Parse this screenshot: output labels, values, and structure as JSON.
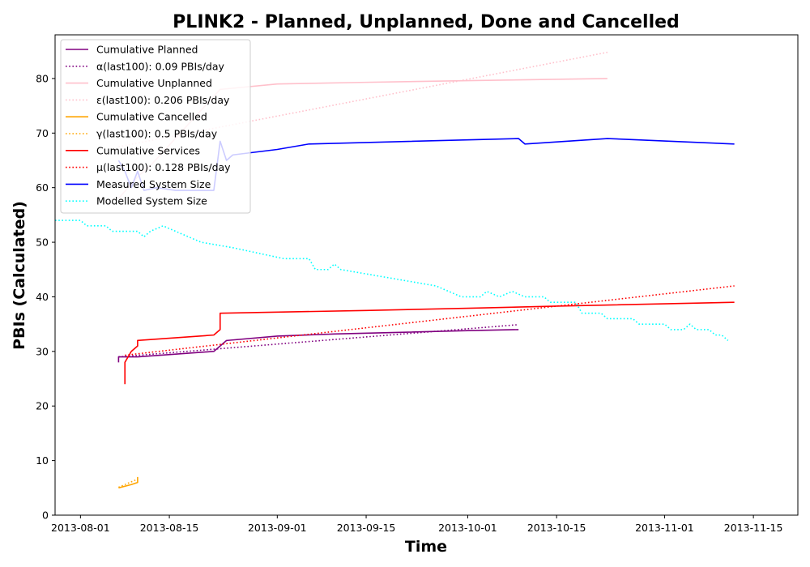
{
  "chart_data": {
    "type": "line",
    "title": "PLINK2 - Planned, Unplanned, Done  and Cancelled",
    "xlabel": "Time",
    "ylabel": "PBIs (Calculated)",
    "xlim": [
      "2013-07-28",
      "2013-11-22"
    ],
    "ylim": [
      0,
      88
    ],
    "x_ticks": [
      "2013-08-01",
      "2013-08-15",
      "2013-09-01",
      "2013-09-15",
      "2013-10-01",
      "2013-10-15",
      "2013-11-01",
      "2013-11-15"
    ],
    "y_ticks": [
      0,
      10,
      20,
      30,
      40,
      50,
      60,
      70,
      80
    ],
    "grid": false,
    "legend_position": "top-left",
    "series": [
      {
        "name": "Cumulative Planned",
        "color": "#800080",
        "style": "solid",
        "points": [
          [
            "2013-08-07",
            28
          ],
          [
            "2013-08-07",
            29
          ],
          [
            "2013-08-10",
            29
          ],
          [
            "2013-08-22",
            30
          ],
          [
            "2013-08-24",
            32
          ],
          [
            "2013-09-01",
            32.8
          ],
          [
            "2013-09-10",
            33.2
          ],
          [
            "2013-10-01",
            33.8
          ],
          [
            "2013-10-09",
            34
          ]
        ]
      },
      {
        "name": "α(last100): 0.09 PBIs/day",
        "color": "#800080",
        "style": "dotted",
        "points": [
          [
            "2013-08-07",
            29
          ],
          [
            "2013-10-09",
            34.9
          ]
        ]
      },
      {
        "name": "Cumulative Unplanned",
        "color": "#ffc0cb",
        "style": "solid",
        "points": [
          [
            "2013-08-07",
            58
          ],
          [
            "2013-08-10",
            62
          ],
          [
            "2013-08-12",
            64
          ],
          [
            "2013-08-23",
            78
          ],
          [
            "2013-09-01",
            79
          ],
          [
            "2013-09-15",
            79.3
          ],
          [
            "2013-10-01",
            79.6
          ],
          [
            "2013-10-23",
            80
          ]
        ]
      },
      {
        "name": "ε(last100): 0.206 PBIs/day",
        "color": "#ffc0cb",
        "style": "dotted",
        "points": [
          [
            "2013-08-07",
            67.5
          ],
          [
            "2013-10-23",
            84.8
          ]
        ]
      },
      {
        "name": "Cumulative Cancelled",
        "color": "#ffa500",
        "style": "solid",
        "points": [
          [
            "2013-08-07",
            5
          ],
          [
            "2013-08-09",
            5.6
          ],
          [
            "2013-08-10",
            6
          ],
          [
            "2013-08-10",
            7
          ]
        ]
      },
      {
        "name": "γ(last100): 0.5 PBIs/day",
        "color": "#ffa500",
        "style": "dotted",
        "points": [
          [
            "2013-08-07",
            5.1
          ],
          [
            "2013-08-10",
            6.6
          ]
        ]
      },
      {
        "name": "Cumulative Services",
        "color": "#ff0000",
        "style": "solid",
        "points": [
          [
            "2013-08-08",
            24
          ],
          [
            "2013-08-08",
            28
          ],
          [
            "2013-08-09",
            30
          ],
          [
            "2013-08-10",
            31
          ],
          [
            "2013-08-10",
            32
          ],
          [
            "2013-08-22",
            33
          ],
          [
            "2013-08-23",
            34
          ],
          [
            "2013-08-23",
            37
          ],
          [
            "2013-09-15",
            37.5
          ],
          [
            "2013-10-01",
            37.9
          ],
          [
            "2013-10-15",
            38.3
          ],
          [
            "2013-11-12",
            39
          ]
        ]
      },
      {
        "name": "μ(last100): 0.128 PBIs/day",
        "color": "#ff0000",
        "style": "dotted",
        "points": [
          [
            "2013-08-08",
            29.3
          ],
          [
            "2013-11-12",
            42
          ]
        ]
      },
      {
        "name": "Measured System Size",
        "color": "#0000ff",
        "style": "solid",
        "points": [
          [
            "2013-08-07",
            65
          ],
          [
            "2013-08-08",
            63
          ],
          [
            "2013-08-09",
            60
          ],
          [
            "2013-08-10",
            63
          ],
          [
            "2013-08-11",
            59.5
          ],
          [
            "2013-08-13",
            60
          ],
          [
            "2013-08-16",
            59.5
          ],
          [
            "2013-08-22",
            59.5
          ],
          [
            "2013-08-23",
            68.5
          ],
          [
            "2013-08-24",
            65
          ],
          [
            "2013-08-25",
            66
          ],
          [
            "2013-09-01",
            67
          ],
          [
            "2013-09-06",
            68
          ],
          [
            "2013-10-09",
            69
          ],
          [
            "2013-10-10",
            68
          ],
          [
            "2013-10-23",
            69
          ],
          [
            "2013-11-12",
            68
          ]
        ]
      },
      {
        "name": "Modelled System Size",
        "color": "#00ffff",
        "style": "dotted",
        "points": [
          [
            "2013-07-28",
            54
          ],
          [
            "2013-08-01",
            54
          ],
          [
            "2013-08-02",
            53
          ],
          [
            "2013-08-05",
            53
          ],
          [
            "2013-08-06",
            52
          ],
          [
            "2013-08-10",
            52
          ],
          [
            "2013-08-11",
            51
          ],
          [
            "2013-08-12",
            52
          ],
          [
            "2013-08-14",
            53
          ],
          [
            "2013-08-16",
            52
          ],
          [
            "2013-08-18",
            51
          ],
          [
            "2013-08-20",
            50
          ],
          [
            "2013-08-25",
            49
          ],
          [
            "2013-08-29",
            48
          ],
          [
            "2013-09-02",
            47
          ],
          [
            "2013-09-06",
            47
          ],
          [
            "2013-09-07",
            45
          ],
          [
            "2013-09-09",
            45
          ],
          [
            "2013-09-10",
            46
          ],
          [
            "2013-09-11",
            45
          ],
          [
            "2013-09-16",
            44
          ],
          [
            "2013-09-21",
            43
          ],
          [
            "2013-09-26",
            42
          ],
          [
            "2013-09-30",
            40
          ],
          [
            "2013-10-03",
            40
          ],
          [
            "2013-10-04",
            41
          ],
          [
            "2013-10-06",
            40
          ],
          [
            "2013-10-08",
            41
          ],
          [
            "2013-10-10",
            40
          ],
          [
            "2013-10-13",
            40
          ],
          [
            "2013-10-14",
            39
          ],
          [
            "2013-10-18",
            39
          ],
          [
            "2013-10-19",
            37
          ],
          [
            "2013-10-22",
            37
          ],
          [
            "2013-10-23",
            36
          ],
          [
            "2013-10-27",
            36
          ],
          [
            "2013-10-28",
            35
          ],
          [
            "2013-11-01",
            35
          ],
          [
            "2013-11-02",
            34
          ],
          [
            "2013-11-04",
            34
          ],
          [
            "2013-11-05",
            35
          ],
          [
            "2013-11-06",
            34
          ],
          [
            "2013-11-08",
            34
          ],
          [
            "2013-11-09",
            33
          ],
          [
            "2013-11-10",
            33
          ],
          [
            "2013-11-11",
            32
          ]
        ]
      }
    ]
  }
}
